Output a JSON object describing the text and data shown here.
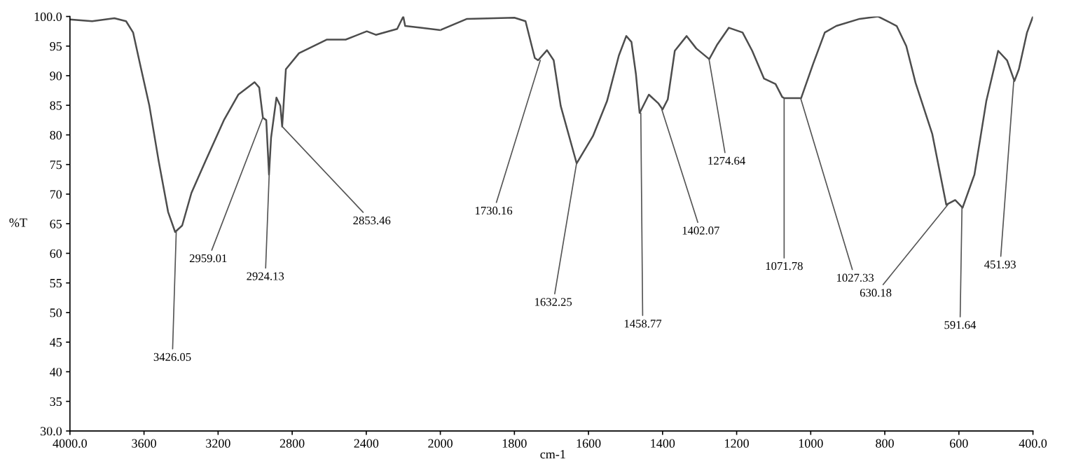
{
  "chart_data": [
    {
      "type": "line",
      "ylabel": "%T",
      "xlim": [
        4000,
        2000
      ],
      "ylim": [
        30,
        100
      ],
      "xticks": [
        {
          "value": 4000,
          "label": "4000.0"
        },
        3600,
        3200,
        2800,
        2400,
        2000
      ],
      "yticks": [
        {
          "value": 30,
          "label": "30.0"
        },
        35,
        40,
        45,
        50,
        55,
        60,
        65,
        70,
        75,
        80,
        85,
        90,
        95,
        {
          "value": 100,
          "label": "100.0"
        }
      ],
      "marker": "none",
      "line_style": "solid",
      "series": [
        {
          "color": "#4d4d4d",
          "x": [
            4000,
            3880,
            3760,
            3697,
            3659,
            3621,
            3571,
            3521,
            3470,
            3432,
            3394,
            3344,
            3268,
            3167,
            3091,
            3003,
            2978,
            2958,
            2940,
            2925,
            2914,
            2885,
            2864,
            2854,
            2834,
            2763,
            2612,
            2511,
            2397,
            2348,
            2233,
            2200,
            2190,
            2107,
            2000
          ],
          "values": [
            99.5,
            99.2,
            99.7,
            99.2,
            97.3,
            91.9,
            84.9,
            75.6,
            67,
            63.6,
            64.7,
            70.2,
            75.6,
            82.6,
            86.8,
            88.9,
            88,
            82.9,
            82.5,
            73.3,
            79.5,
            86.3,
            84.9,
            81.4,
            91.1,
            93.8,
            96.1,
            96.1,
            97.5,
            96.9,
            97.9,
            100,
            98.4,
            98.1,
            97.7
          ]
        }
      ],
      "annotations": [
        {
          "text": "3426.05",
          "x": 3426.05,
          "y": 63.6
        },
        {
          "text": "2959.01",
          "x": 2959.01,
          "y": 82.9
        },
        {
          "text": "2924.13",
          "x": 2924.13,
          "y": 73.3
        },
        {
          "text": "2853.46",
          "x": 2853.46,
          "y": 81.4
        }
      ]
    },
    {
      "type": "line",
      "xlabel": "cm-1",
      "tick_labels": "x",
      "xlim": [
        2000,
        400
      ],
      "ylim": [
        30,
        100
      ],
      "xticks": [
        1800,
        1600,
        1400,
        1200,
        1000,
        800,
        600,
        {
          "value": 400,
          "label": "400.0"
        }
      ],
      "marker": "none",
      "line_style": "solid",
      "series": [
        {
          "color": "#4d4d4d",
          "x": [
            2000,
            1928,
            1800,
            1770,
            1745,
            1736,
            1712,
            1694,
            1675,
            1632,
            1588,
            1550,
            1518,
            1498,
            1484,
            1472,
            1462,
            1437,
            1411,
            1400,
            1386,
            1367,
            1335,
            1309,
            1274,
            1252,
            1221,
            1184,
            1158,
            1126,
            1095,
            1077,
            1071,
            1026,
            994,
            962,
            931,
            868,
            818,
            768,
            742,
            717,
            672,
            634,
            610,
            590,
            558,
            526,
            494,
            470,
            450,
            438,
            416,
            400
          ],
          "values": [
            97.7,
            99.6,
            99.8,
            99.2,
            93,
            92.6,
            94.3,
            92.6,
            84.9,
            75.2,
            79.8,
            85.7,
            93.4,
            96.7,
            95.7,
            90.3,
            83.7,
            86.8,
            85.3,
            84.3,
            86,
            94.2,
            96.7,
            94.6,
            92.8,
            95.3,
            98.1,
            97.3,
            94.2,
            89.5,
            88.6,
            86.4,
            86.2,
            86.2,
            91.9,
            97.3,
            98.4,
            99.6,
            100,
            98.4,
            95,
            88.8,
            80.2,
            68.2,
            69,
            67.7,
            73.3,
            85.7,
            94.2,
            92.6,
            89.1,
            91.1,
            97.3,
            100
          ]
        }
      ],
      "annotations": [
        {
          "text": "1730.16",
          "x": 1730.16,
          "y": 92.6
        },
        {
          "text": "1632.25",
          "x": 1632.25,
          "y": 75.2
        },
        {
          "text": "1458.77",
          "x": 1458.77,
          "y": 83.7
        },
        {
          "text": "1402.07",
          "x": 1402.07,
          "y": 84.3
        },
        {
          "text": "1274.64",
          "x": 1274.64,
          "y": 92.8
        },
        {
          "text": "1071.78",
          "x": 1071.78,
          "y": 86.2
        },
        {
          "text": "1027.33",
          "x": 1027.33,
          "y": 86.2
        },
        {
          "text": "630.18",
          "x": 630.18,
          "y": 68.2
        },
        {
          "text": "591.64",
          "x": 591.64,
          "y": 67.7
        },
        {
          "text": "451.93",
          "x": 451.93,
          "y": 89.1
        }
      ]
    }
  ]
}
